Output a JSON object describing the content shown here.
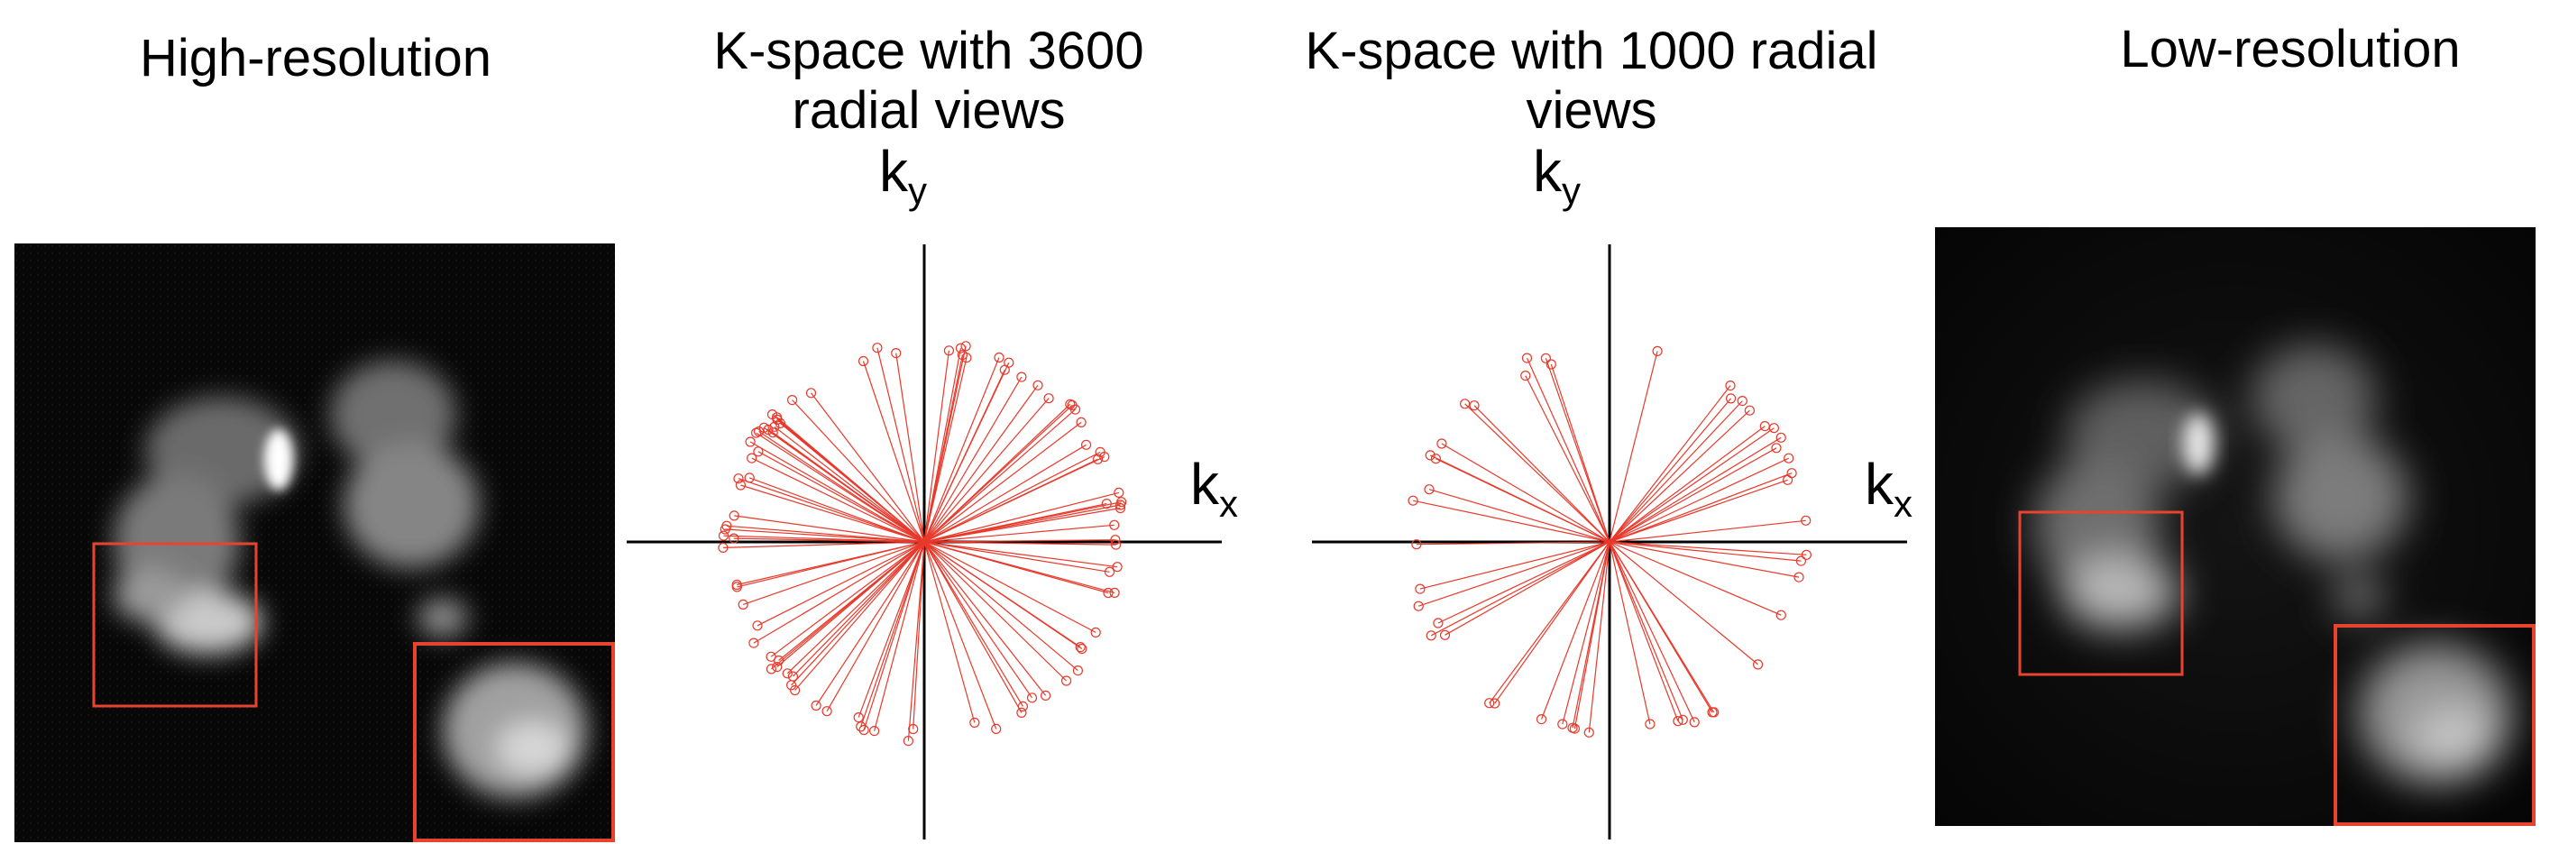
{
  "panels": {
    "high_res": {
      "title": "High-resolution"
    },
    "kspace_dense": {
      "title_line1": "K-space with 3600",
      "title_line2": "radial views",
      "ky_label": "k",
      "ky_sub": "y",
      "kx_label": "k",
      "kx_sub": "x",
      "num_views": 3600
    },
    "kspace_sparse": {
      "title_line1": "K-space with 1000 radial",
      "title_line2": "views",
      "ky_label": "k",
      "ky_sub": "y",
      "kx_label": "k",
      "kx_sub": "x",
      "num_views": 1000
    },
    "low_res": {
      "title": "Low-resolution"
    }
  },
  "colors": {
    "spoke": "#e8392b",
    "roi_box": "#e8432f",
    "axis": "#000000",
    "image_bg": "#060606"
  }
}
